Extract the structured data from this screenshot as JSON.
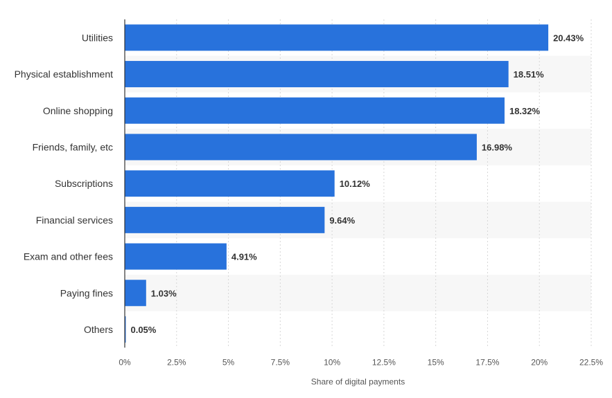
{
  "chart_data": {
    "type": "bar",
    "orientation": "horizontal",
    "categories": [
      "Utilities",
      "Physical establishment",
      "Online shopping",
      "Friends, family, etc",
      "Subscriptions",
      "Financial services",
      "Exam and other fees",
      "Paying fines",
      "Others"
    ],
    "values": [
      20.43,
      18.51,
      18.32,
      16.98,
      10.12,
      9.64,
      4.91,
      1.03,
      0.05
    ],
    "value_labels": [
      "20.43%",
      "18.51%",
      "18.32%",
      "16.98%",
      "10.12%",
      "9.64%",
      "4.91%",
      "1.03%",
      "0.05%"
    ],
    "xlabel": "Share of digital payments",
    "ylabel": "",
    "xlim": [
      0,
      22.5
    ],
    "ticks": [
      "0%",
      "2.5%",
      "5%",
      "7.5%",
      "10%",
      "12.5%",
      "15%",
      "17.5%",
      "20%",
      "22.5%"
    ],
    "tick_values": [
      0,
      2.5,
      5,
      7.5,
      10,
      12.5,
      15,
      17.5,
      20,
      22.5
    ],
    "grid": true,
    "bar_color": "#2872dc",
    "band_color": "#f7f7f7"
  }
}
